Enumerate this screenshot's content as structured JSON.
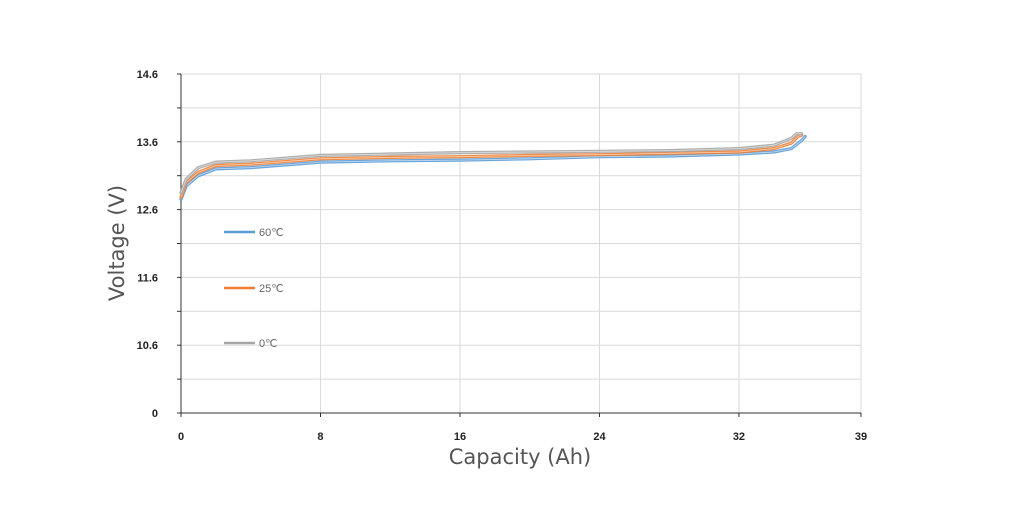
{
  "chart_data": {
    "type": "line",
    "title": "",
    "xlabel": "Capacity (Ah)",
    "ylabel": "Voltage (V)",
    "xlim": [
      0,
      39
    ],
    "xticks": [
      {
        "label": "0",
        "value": 0
      },
      {
        "label": "8",
        "value": 8
      },
      {
        "label": "16",
        "value": 16
      },
      {
        "label": "24",
        "value": 24
      },
      {
        "label": "32",
        "value": 32
      },
      {
        "label": "39",
        "value": 39
      }
    ],
    "yticks": [
      {
        "label": "0",
        "value": 0
      },
      {
        "label": "10.6",
        "value": 10.6
      },
      {
        "label": "11.6",
        "value": 11.6
      },
      {
        "label": "12.6",
        "value": 12.6
      },
      {
        "label": "13.6",
        "value": 13.6
      },
      {
        "label": "14.6",
        "value": 14.6
      }
    ],
    "grid": true,
    "legend_position": "left",
    "series": [
      {
        "name": "60℃",
        "color": "#5b9bd5",
        "points": [
          [
            0,
            12.75
          ],
          [
            0.3,
            12.95
          ],
          [
            1,
            13.1
          ],
          [
            2,
            13.2
          ],
          [
            4,
            13.22
          ],
          [
            8,
            13.3
          ],
          [
            12,
            13.32
          ],
          [
            16,
            13.33
          ],
          [
            20,
            13.35
          ],
          [
            24,
            13.38
          ],
          [
            28,
            13.39
          ],
          [
            32,
            13.42
          ],
          [
            34,
            13.45
          ],
          [
            35,
            13.5
          ],
          [
            35.6,
            13.62
          ],
          [
            35.8,
            13.68
          ]
        ]
      },
      {
        "name": "25℃",
        "color": "#ed7d31",
        "points": [
          [
            0,
            12.78
          ],
          [
            0.3,
            13.0
          ],
          [
            1,
            13.15
          ],
          [
            2,
            13.25
          ],
          [
            4,
            13.27
          ],
          [
            8,
            13.35
          ],
          [
            12,
            13.37
          ],
          [
            16,
            13.38
          ],
          [
            20,
            13.4
          ],
          [
            24,
            13.41
          ],
          [
            28,
            13.43
          ],
          [
            32,
            13.45
          ],
          [
            34,
            13.5
          ],
          [
            35,
            13.58
          ],
          [
            35.4,
            13.68
          ],
          [
            35.6,
            13.7
          ]
        ]
      },
      {
        "name": "0℃",
        "color": "#a5a5a5",
        "points": [
          [
            0,
            12.85
          ],
          [
            0.3,
            13.05
          ],
          [
            1,
            13.22
          ],
          [
            2,
            13.3
          ],
          [
            4,
            13.32
          ],
          [
            8,
            13.4
          ],
          [
            12,
            13.42
          ],
          [
            16,
            13.44
          ],
          [
            20,
            13.45
          ],
          [
            24,
            13.46
          ],
          [
            28,
            13.47
          ],
          [
            32,
            13.5
          ],
          [
            34,
            13.55
          ],
          [
            35,
            13.65
          ],
          [
            35.3,
            13.72
          ],
          [
            35.6,
            13.72
          ]
        ]
      }
    ]
  }
}
